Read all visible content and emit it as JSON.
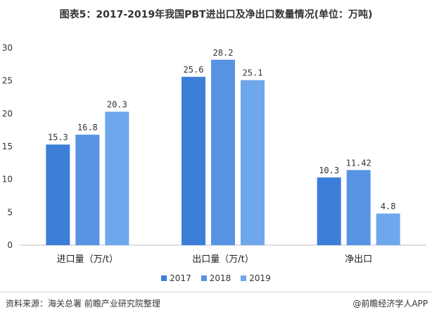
{
  "title": "图表5：2017-2019年我国PBT进出口及净出口数量情况(单位：万吨)",
  "footer": {
    "source": "资料来源：海关总署 前瞻产业研究院整理",
    "brand": "@前瞻经济学人APP"
  },
  "chart_data": {
    "type": "bar",
    "title": "图表5：2017-2019年我国PBT进出口及净出口数量情况(单位：万吨)",
    "categories": [
      "进口量（万/t）",
      "出口量（万/t）",
      "净出口"
    ],
    "series": [
      {
        "name": "2017",
        "values": [
          15.3,
          25.6,
          10.3
        ],
        "labels": [
          "15.3",
          "25.6",
          "10.3"
        ],
        "color": "#3d7fd8"
      },
      {
        "name": "2018",
        "values": [
          16.8,
          28.2,
          11.42
        ],
        "labels": [
          "16.8",
          "28.2",
          "11.42"
        ],
        "color": "#5693e2"
      },
      {
        "name": "2019",
        "values": [
          20.3,
          25.1,
          4.8
        ],
        "labels": [
          "20.3",
          "25.1",
          "4.8"
        ],
        "color": "#6fa7ec"
      }
    ],
    "ylim": [
      0,
      30
    ],
    "yticks": [
      "0",
      "5",
      "10",
      "15",
      "20",
      "25",
      "30"
    ],
    "xlabel": "",
    "ylabel": "",
    "grid": false,
    "legend_position": "bottom"
  }
}
